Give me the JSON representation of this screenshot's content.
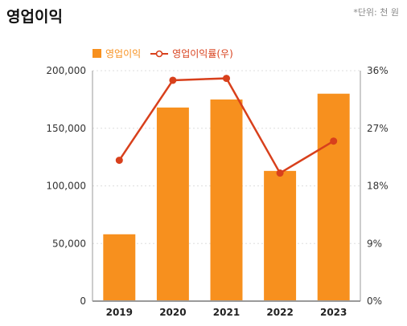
{
  "header": {
    "title": "영업이익",
    "unit": "*단위: 천 원"
  },
  "colors": {
    "bar": "#f7901e",
    "line": "#d8401c",
    "axis": "#9a9a9a",
    "grid": "#dddddd"
  },
  "chart_data": {
    "type": "bar",
    "categories": [
      "2019",
      "2020",
      "2021",
      "2022",
      "2023"
    ],
    "series": [
      {
        "name": "영업이익",
        "type": "bar",
        "axis": "left",
        "values": [
          58000,
          168000,
          175000,
          113000,
          180000
        ]
      },
      {
        "name": "영업이익률(우)",
        "type": "line",
        "axis": "right",
        "values": [
          22.0,
          34.5,
          34.8,
          20.0,
          25.0
        ]
      }
    ],
    "left_axis": {
      "ylim": [
        0,
        200000
      ],
      "ticks": [
        "0",
        "50,000",
        "100,000",
        "150,000",
        "200,000"
      ]
    },
    "right_axis": {
      "ylim": [
        0,
        36
      ],
      "ticks": [
        "0%",
        "9%",
        "18%",
        "27%",
        "36%"
      ]
    },
    "grid": true,
    "legend_position": "top-left"
  }
}
